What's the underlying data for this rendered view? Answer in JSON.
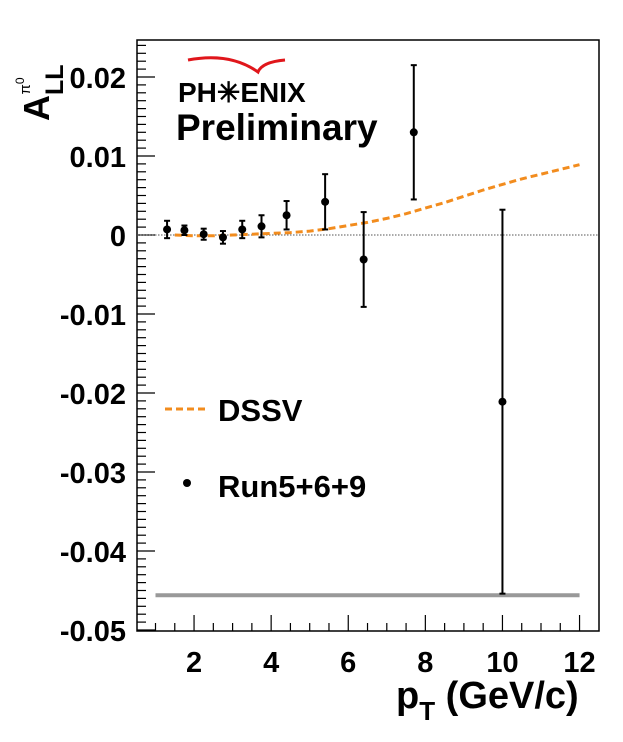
{
  "chart_data": {
    "type": "scatter",
    "logo_text": "PH✳ENIX",
    "status_label": "Preliminary",
    "ylabel": {
      "main": "A",
      "sub": "LL",
      "sup": "π",
      "sup2": "0"
    },
    "xlabel": {
      "main": "p",
      "sub": "T",
      "rest": " (GeV/c)"
    },
    "xlim": [
      0.9,
      12.1
    ],
    "ylim": [
      -0.05,
      0.025
    ],
    "x_ticks": [
      2,
      4,
      6,
      8,
      10,
      12
    ],
    "x_tick_labels": [
      "2",
      "4",
      "6",
      "8",
      "10",
      "12"
    ],
    "y_ticks": [
      0.02,
      0.01,
      0,
      -0.01,
      -0.02,
      -0.03,
      -0.04,
      -0.05
    ],
    "y_tick_labels": [
      "0.02",
      "0.01",
      "0",
      "-0.01",
      "-0.02",
      "-0.03",
      "-0.04",
      "-0.05"
    ],
    "zero_line": true,
    "series": [
      {
        "name": "Run5+6+9",
        "style": "points-with-errorbars",
        "color": "#000000",
        "points": [
          {
            "x": 1.3,
            "y": 0.0007,
            "err": 0.0011
          },
          {
            "x": 1.75,
            "y": 0.0006,
            "err": 0.0006
          },
          {
            "x": 2.25,
            "y": 0.0001,
            "err": 0.0007
          },
          {
            "x": 2.75,
            "y": -0.0003,
            "err": 0.0008
          },
          {
            "x": 3.25,
            "y": 0.0007,
            "err": 0.0011
          },
          {
            "x": 3.75,
            "y": 0.0011,
            "err": 0.0014
          },
          {
            "x": 4.4,
            "y": 0.0025,
            "err": 0.0018
          },
          {
            "x": 5.4,
            "y": 0.0042,
            "err": 0.0035
          },
          {
            "x": 6.4,
            "y": -0.0031,
            "err": 0.006
          },
          {
            "x": 7.7,
            "y": 0.013,
            "err": 0.0085
          },
          {
            "x": 10.0,
            "y": -0.0211,
            "err": 0.0243
          }
        ]
      },
      {
        "name": "DSSV",
        "style": "dashed-line",
        "color": "#f28c1e",
        "x": [
          1.5,
          2,
          2.5,
          3,
          3.5,
          4,
          4.5,
          5,
          5.5,
          6,
          6.5,
          7,
          7.5,
          8,
          8.5,
          9,
          9.5,
          10,
          10.5,
          11,
          11.5,
          12
        ],
        "y": [
          0.0,
          -0.0001,
          -0.0001,
          0.0,
          0.0001,
          0.0002,
          0.0003,
          0.0005,
          0.0008,
          0.0012,
          0.0016,
          0.0021,
          0.0027,
          0.0034,
          0.0041,
          0.0049,
          0.0057,
          0.0064,
          0.0071,
          0.0077,
          0.0083,
          0.0089
        ]
      },
      {
        "name": "systematic-band",
        "style": "band",
        "color": "#999999",
        "x": [
          1.0,
          12.0
        ],
        "y": -0.0456
      }
    ],
    "legend": {
      "placement": "lower-left",
      "entries": [
        {
          "label": "DSSV",
          "marker": "dashed-line",
          "color": "#f28c1e"
        },
        {
          "label": "Run5+6+9",
          "marker": "point",
          "color": "#000000"
        }
      ]
    },
    "logo_colors": {
      "arc": "#e0161b",
      "star": "#999999"
    }
  }
}
